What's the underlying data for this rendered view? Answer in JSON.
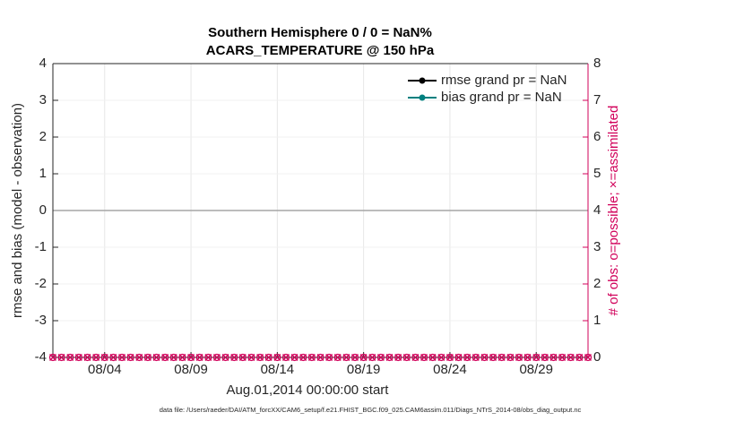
{
  "chart_data": {
    "type": "line",
    "title": "Southern Hemisphere 0 / 0 = NaN%",
    "subtitle": "ACARS_TEMPERATURE @ 150 hPa",
    "ylabel": "rmse and bias (model - observation)",
    "y2label": "# of obs: o=possible; ×=assimilated",
    "xlabel": "Aug.01,2014 00:00:00 start",
    "footnote": "data file: /Users/raeder/DAI/ATM_forcXX/CAM6_setup/f.e21.FHIST_BGC.f09_025.CAM6assim.011/Diags_NTrS_2014-08/obs_diag_output.nc",
    "xlim": [
      1,
      32
    ],
    "xticks": [
      {
        "value": 4,
        "label": "08/04"
      },
      {
        "value": 9,
        "label": "08/09"
      },
      {
        "value": 14,
        "label": "08/14"
      },
      {
        "value": 19,
        "label": "08/19"
      },
      {
        "value": 24,
        "label": "08/24"
      },
      {
        "value": 29,
        "label": "08/29"
      }
    ],
    "ylim": [
      -4,
      4
    ],
    "yticks": [
      -4,
      -3,
      -2,
      -1,
      0,
      1,
      2,
      3,
      4
    ],
    "y2lim": [
      0,
      8
    ],
    "y2ticks": [
      0,
      1,
      2,
      3,
      4,
      5,
      6,
      7,
      8
    ],
    "y2color": "#d1005a",
    "hline": 0,
    "grid": true,
    "legend": "upper right",
    "series": [
      {
        "name": "rmse grand pr = NaN",
        "color": "#000000",
        "marker": "dot",
        "x": [],
        "values": []
      },
      {
        "name": "bias grand pr = NaN",
        "color": "#00807f",
        "marker": "dot",
        "x": [],
        "values": []
      },
      {
        "axis": "y2",
        "color": "#d1005a",
        "marker": "o",
        "x": [
          1,
          1.5,
          2,
          2.5,
          3,
          3.5,
          4,
          4.5,
          5,
          5.5,
          6,
          6.5,
          7,
          7.5,
          8,
          8.5,
          9,
          9.5,
          10,
          10.5,
          11,
          11.5,
          12,
          12.5,
          13,
          13.5,
          14,
          14.5,
          15,
          15.5,
          16,
          16.5,
          17,
          17.5,
          18,
          18.5,
          19,
          19.5,
          20,
          20.5,
          21,
          21.5,
          22,
          22.5,
          23,
          23.5,
          24,
          24.5,
          25,
          25.5,
          26,
          26.5,
          27,
          27.5,
          28,
          28.5,
          29,
          29.5,
          30,
          30.5,
          31,
          31.5,
          32
        ],
        "values": [
          0,
          0,
          0,
          0,
          0,
          0,
          0,
          0,
          0,
          0,
          0,
          0,
          0,
          0,
          0,
          0,
          0,
          0,
          0,
          0,
          0,
          0,
          0,
          0,
          0,
          0,
          0,
          0,
          0,
          0,
          0,
          0,
          0,
          0,
          0,
          0,
          0,
          0,
          0,
          0,
          0,
          0,
          0,
          0,
          0,
          0,
          0,
          0,
          0,
          0,
          0,
          0,
          0,
          0,
          0,
          0,
          0,
          0,
          0,
          0,
          0,
          0,
          0
        ]
      },
      {
        "axis": "y2",
        "color": "#d1005a",
        "marker": "x",
        "x": [
          1,
          1.5,
          2,
          2.5,
          3,
          3.5,
          4,
          4.5,
          5,
          5.5,
          6,
          6.5,
          7,
          7.5,
          8,
          8.5,
          9,
          9.5,
          10,
          10.5,
          11,
          11.5,
          12,
          12.5,
          13,
          13.5,
          14,
          14.5,
          15,
          15.5,
          16,
          16.5,
          17,
          17.5,
          18,
          18.5,
          19,
          19.5,
          20,
          20.5,
          21,
          21.5,
          22,
          22.5,
          23,
          23.5,
          24,
          24.5,
          25,
          25.5,
          26,
          26.5,
          27,
          27.5,
          28,
          28.5,
          29,
          29.5,
          30,
          30.5,
          31,
          31.5,
          32
        ],
        "values": [
          0,
          0,
          0,
          0,
          0,
          0,
          0,
          0,
          0,
          0,
          0,
          0,
          0,
          0,
          0,
          0,
          0,
          0,
          0,
          0,
          0,
          0,
          0,
          0,
          0,
          0,
          0,
          0,
          0,
          0,
          0,
          0,
          0,
          0,
          0,
          0,
          0,
          0,
          0,
          0,
          0,
          0,
          0,
          0,
          0,
          0,
          0,
          0,
          0,
          0,
          0,
          0,
          0,
          0,
          0,
          0,
          0,
          0,
          0,
          0,
          0,
          0,
          0
        ]
      }
    ]
  }
}
